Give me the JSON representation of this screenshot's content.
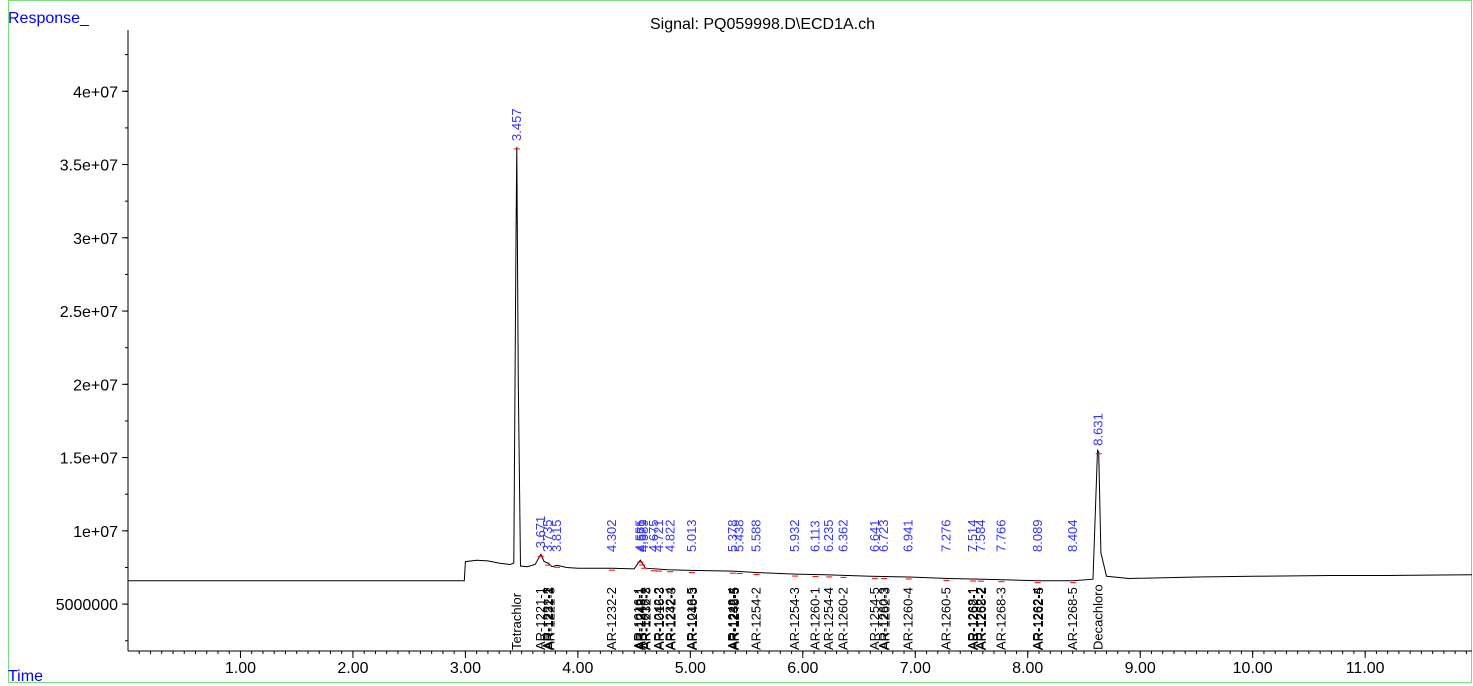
{
  "chart_data": {
    "type": "line",
    "title": "Signal: PQ059998.D\\ECD1A.ch",
    "ylabel": "Response_",
    "xlabel": "Time",
    "xlim": [
      0.0,
      11.95
    ],
    "ylim": [
      1800000,
      45000000
    ],
    "x_ticks": [
      "1.00",
      "2.00",
      "3.00",
      "4.00",
      "5.00",
      "6.00",
      "7.00",
      "8.00",
      "9.00",
      "10.00",
      "11.00"
    ],
    "y_ticks": [
      "5000000",
      "1e+07",
      "1.5e+07",
      "2e+07",
      "2.5e+07",
      "3e+07",
      "3.5e+07",
      "4e+07"
    ],
    "series": [
      {
        "points": [
          [
            0.0,
            6600000
          ],
          [
            2.99,
            6600000
          ],
          [
            3.0,
            7900000
          ],
          [
            3.1,
            8000000
          ],
          [
            3.2,
            7950000
          ],
          [
            3.3,
            7800000
          ],
          [
            3.4,
            7700000
          ],
          [
            3.43,
            7800000
          ],
          [
            3.45,
            30000000
          ],
          [
            3.457,
            36200000
          ],
          [
            3.47,
            20000000
          ],
          [
            3.49,
            7600000
          ],
          [
            3.55,
            7550000
          ],
          [
            3.62,
            7700000
          ],
          [
            3.671,
            8400000
          ],
          [
            3.7,
            7900000
          ],
          [
            3.735,
            7800000
          ],
          [
            3.77,
            7550000
          ],
          [
            3.815,
            7650000
          ],
          [
            3.9,
            7500000
          ],
          [
            4.0,
            7450000
          ],
          [
            4.302,
            7450000
          ],
          [
            4.5,
            7400000
          ],
          [
            4.555,
            8000000
          ],
          [
            4.6,
            7450000
          ],
          [
            4.8,
            7350000
          ],
          [
            5.0,
            7300000
          ],
          [
            5.378,
            7250000
          ],
          [
            5.6,
            7150000
          ],
          [
            5.932,
            7050000
          ],
          [
            6.2,
            7000000
          ],
          [
            6.6,
            6900000
          ],
          [
            6.941,
            6850000
          ],
          [
            7.3,
            6750000
          ],
          [
            7.6,
            6700000
          ],
          [
            8.089,
            6600000
          ],
          [
            8.404,
            6600000
          ],
          [
            8.58,
            6700000
          ],
          [
            8.62,
            15500000
          ],
          [
            8.631,
            15400000
          ],
          [
            8.65,
            8500000
          ],
          [
            8.7,
            6900000
          ],
          [
            8.9,
            6750000
          ],
          [
            9.5,
            6850000
          ],
          [
            10.0,
            6900000
          ],
          [
            10.7,
            6950000
          ],
          [
            11.2,
            6950000
          ],
          [
            11.95,
            7000000
          ]
        ]
      }
    ],
    "peak_labels": [
      {
        "t": 3.457,
        "label": "3.457"
      },
      {
        "t": 3.671,
        "label": "3.671"
      },
      {
        "t": 3.735,
        "label": "3.735"
      },
      {
        "t": 3.815,
        "label": "3.815"
      },
      {
        "t": 4.302,
        "label": "4.302"
      },
      {
        "t": 4.555,
        "label": "4.555"
      },
      {
        "t": 4.571,
        "label": "4.571"
      },
      {
        "t": 4.589,
        "label": "4.589"
      },
      {
        "t": 4.675,
        "label": "4.675"
      },
      {
        "t": 4.721,
        "label": "4.721"
      },
      {
        "t": 4.822,
        "label": "4.822"
      },
      {
        "t": 5.013,
        "label": "5.013"
      },
      {
        "t": 5.378,
        "label": "5.378"
      },
      {
        "t": 5.438,
        "label": "5.438"
      },
      {
        "t": 5.588,
        "label": "5.588"
      },
      {
        "t": 5.932,
        "label": "5.932"
      },
      {
        "t": 6.113,
        "label": "6.113"
      },
      {
        "t": 6.235,
        "label": "6.235"
      },
      {
        "t": 6.362,
        "label": "6.362"
      },
      {
        "t": 6.641,
        "label": "6.641"
      },
      {
        "t": 6.723,
        "label": "6.723"
      },
      {
        "t": 6.941,
        "label": "6.941"
      },
      {
        "t": 7.276,
        "label": "7.276"
      },
      {
        "t": 7.514,
        "label": "7.514"
      },
      {
        "t": 7.584,
        "label": "7.584"
      },
      {
        "t": 7.766,
        "label": "7.766"
      },
      {
        "t": 8.089,
        "label": "8.089"
      },
      {
        "t": 8.404,
        "label": "8.404"
      },
      {
        "t": 8.631,
        "label": "8.631"
      }
    ],
    "compound_labels": [
      {
        "t": 3.457,
        "label": "Tetrachlor"
      },
      {
        "t": 3.671,
        "label": "AR-1221-1"
      },
      {
        "t": 3.735,
        "label": "AR-1221-2"
      },
      {
        "t": 3.745,
        "label": "AR-1232-1"
      },
      {
        "t": 3.755,
        "label": "AR-1221-3"
      },
      {
        "t": 4.302,
        "label": "AR-1232-2"
      },
      {
        "t": 4.545,
        "label": "AR-1016-1"
      },
      {
        "t": 4.555,
        "label": "AR-1242-1"
      },
      {
        "t": 4.565,
        "label": "AR-1248-1"
      },
      {
        "t": 4.6,
        "label": "AR-1016-2"
      },
      {
        "t": 4.61,
        "label": "AR-1232-3"
      },
      {
        "t": 4.721,
        "label": "AR-1242-2"
      },
      {
        "t": 4.731,
        "label": "AR-1016-3"
      },
      {
        "t": 4.822,
        "label": "AR-1232-4"
      },
      {
        "t": 4.832,
        "label": "AR-1242-3"
      },
      {
        "t": 5.013,
        "label": "AR-1016-5"
      },
      {
        "t": 5.023,
        "label": "AR-1248-3"
      },
      {
        "t": 5.378,
        "label": "AR-1248-4"
      },
      {
        "t": 5.388,
        "label": "AR-1232-5"
      },
      {
        "t": 5.398,
        "label": "AR-1248-5"
      },
      {
        "t": 5.588,
        "label": "AR-1254-2"
      },
      {
        "t": 5.932,
        "label": "AR-1254-3"
      },
      {
        "t": 6.113,
        "label": "AR-1260-1"
      },
      {
        "t": 6.235,
        "label": "AR-1254-4"
      },
      {
        "t": 6.362,
        "label": "AR-1260-2"
      },
      {
        "t": 6.641,
        "label": "AR-1254-5"
      },
      {
        "t": 6.723,
        "label": "AR-1260-3"
      },
      {
        "t": 6.733,
        "label": "AR-1262-3"
      },
      {
        "t": 6.941,
        "label": "AR-1260-4"
      },
      {
        "t": 7.276,
        "label": "AR-1260-5"
      },
      {
        "t": 7.514,
        "label": "AR-1268-1"
      },
      {
        "t": 7.524,
        "label": "AR-1262-1"
      },
      {
        "t": 7.584,
        "label": "AR-1262-2"
      },
      {
        "t": 7.594,
        "label": "AR-1268-2"
      },
      {
        "t": 7.766,
        "label": "AR-1268-3"
      },
      {
        "t": 8.089,
        "label": "AR-1262-4"
      },
      {
        "t": 8.099,
        "label": "AR-1262-5"
      },
      {
        "t": 8.404,
        "label": "AR-1268-5"
      },
      {
        "t": 8.631,
        "label": "Decachloro"
      }
    ]
  },
  "colors": {
    "trace": "#000000",
    "peak_label": "#3333ff",
    "baseline_marks": "#ff0000",
    "frame": "#7ddc7d"
  }
}
